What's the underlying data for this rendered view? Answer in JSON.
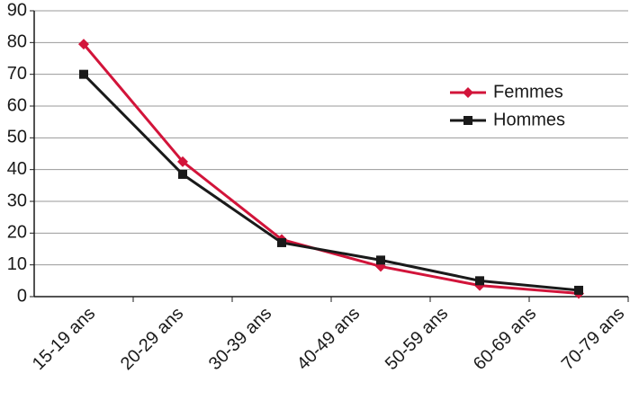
{
  "chart_data": {
    "type": "line",
    "categories": [
      "15-19 ans",
      "20-29 ans",
      "30-39 ans",
      "40-49 ans",
      "50-59 ans",
      "60-69 ans",
      "70-79 ans"
    ],
    "series": [
      {
        "name": "Femmes",
        "color": "#d2143a",
        "marker": "diamond",
        "values": [
          79.5,
          42.5,
          18,
          9.5,
          3.5,
          1,
          null
        ]
      },
      {
        "name": "Hommes",
        "color": "#1a1a1a",
        "marker": "square",
        "values": [
          70,
          38.5,
          17,
          11.5,
          5,
          2,
          null
        ]
      }
    ],
    "ylim": [
      0,
      90
    ],
    "yticks": [
      0,
      10,
      20,
      30,
      40,
      50,
      60,
      70,
      80,
      90
    ],
    "grid": true,
    "legend": "right"
  }
}
